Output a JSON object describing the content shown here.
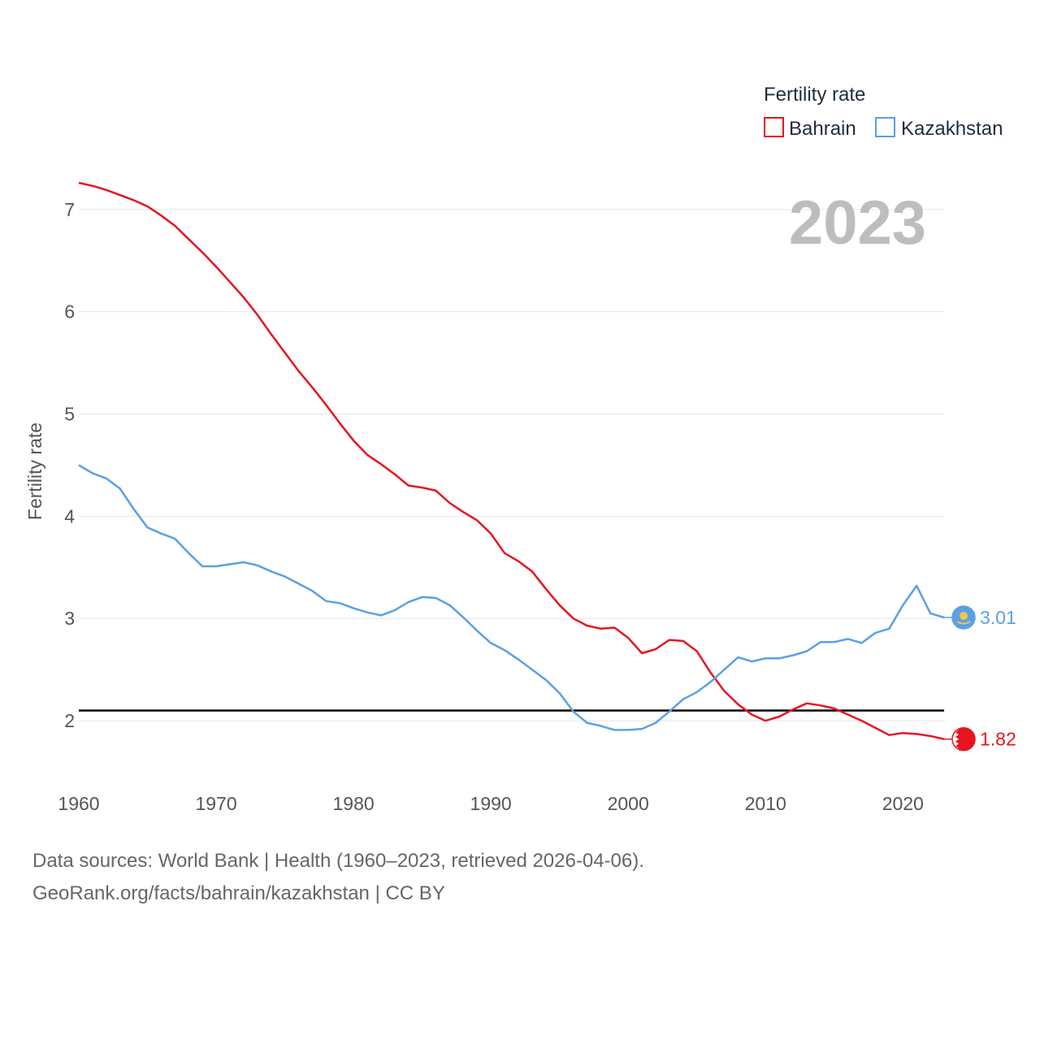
{
  "chart_data": {
    "type": "line",
    "legend_title": "Fertility rate",
    "year_label": "2023",
    "ylabel": "Fertility rate",
    "xlim": [
      1960,
      2023
    ],
    "ylim": [
      1.5,
      7.3
    ],
    "x_ticks": [
      1960,
      1970,
      1980,
      1990,
      2000,
      2010,
      2020
    ],
    "y_ticks": [
      2,
      3,
      4,
      5,
      6,
      7
    ],
    "reference_line": {
      "value": 2.1,
      "color": "#000000"
    },
    "years": [
      1960,
      1961,
      1962,
      1963,
      1964,
      1965,
      1966,
      1967,
      1968,
      1969,
      1970,
      1971,
      1972,
      1973,
      1974,
      1975,
      1976,
      1977,
      1978,
      1979,
      1980,
      1981,
      1982,
      1983,
      1984,
      1985,
      1986,
      1987,
      1988,
      1989,
      1990,
      1991,
      1992,
      1993,
      1994,
      1995,
      1996,
      1997,
      1998,
      1999,
      2000,
      2001,
      2002,
      2003,
      2004,
      2005,
      2006,
      2007,
      2008,
      2009,
      2010,
      2011,
      2012,
      2013,
      2014,
      2015,
      2016,
      2017,
      2018,
      2019,
      2020,
      2021,
      2022,
      2023
    ],
    "series": [
      {
        "name": "Bahrain",
        "color": "#e8141e",
        "end_label": "1.82",
        "values": [
          7.26,
          7.23,
          7.19,
          7.14,
          7.09,
          7.03,
          6.94,
          6.84,
          6.71,
          6.58,
          6.44,
          6.29,
          6.14,
          5.97,
          5.78,
          5.6,
          5.42,
          5.26,
          5.09,
          4.91,
          4.74,
          4.6,
          4.51,
          4.41,
          4.3,
          4.28,
          4.25,
          4.13,
          4.04,
          3.96,
          3.83,
          3.64,
          3.56,
          3.46,
          3.29,
          3.13,
          3.0,
          2.93,
          2.9,
          2.91,
          2.81,
          2.66,
          2.7,
          2.79,
          2.78,
          2.68,
          2.47,
          2.29,
          2.16,
          2.06,
          2.0,
          2.04,
          2.11,
          2.17,
          2.15,
          2.12,
          2.06,
          2.0,
          1.93,
          1.86,
          1.88,
          1.87,
          1.85,
          1.82
        ]
      },
      {
        "name": "Kazakhstan",
        "color": "#5aa0e6",
        "end_label": "3.01",
        "values": [
          4.5,
          4.42,
          4.37,
          4.27,
          4.07,
          3.89,
          3.83,
          3.78,
          3.64,
          3.51,
          3.51,
          3.53,
          3.55,
          3.52,
          3.46,
          3.41,
          3.34,
          3.27,
          3.17,
          3.15,
          3.1,
          3.06,
          3.03,
          3.08,
          3.16,
          3.21,
          3.2,
          3.13,
          3.01,
          2.88,
          2.76,
          2.69,
          2.6,
          2.5,
          2.4,
          2.27,
          2.09,
          1.98,
          1.95,
          1.91,
          1.91,
          1.92,
          1.98,
          2.09,
          2.21,
          2.28,
          2.38,
          2.5,
          2.62,
          2.58,
          2.61,
          2.61,
          2.64,
          2.68,
          2.77,
          2.77,
          2.8,
          2.76,
          2.86,
          2.9,
          3.13,
          3.32,
          3.05,
          3.01
        ]
      }
    ]
  },
  "source": {
    "line1": "Data sources: World Bank | Health (1960–2023, retrieved 2026-04-06).",
    "line2": "GeoRank.org/facts/bahrain/kazakhstan | CC BY"
  }
}
